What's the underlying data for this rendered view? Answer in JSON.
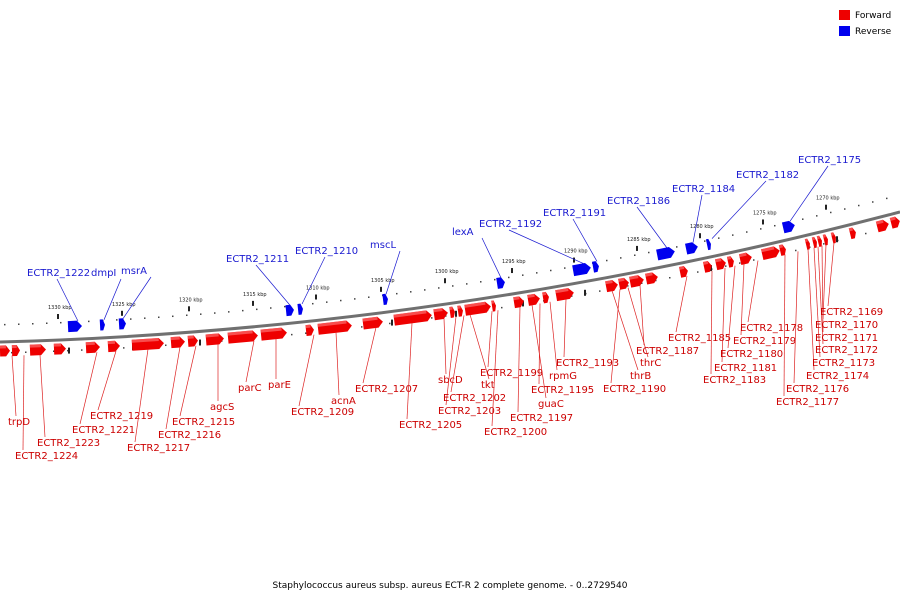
{
  "legend": {
    "forward": {
      "label": "Forward",
      "color": "#ee0000"
    },
    "reverse": {
      "label": "Reverse",
      "color": "#0000ee"
    }
  },
  "caption": "Staphylococcus aureus subsp. aureus ECT-R 2 complete genome. - 0..2729540",
  "ticks": [
    "1330 kbp",
    "1325 kbp",
    "1320 kbp",
    "1315 kbp",
    "1310 kbp",
    "1305 kbp",
    "1300 kbp",
    "1295 kbp",
    "1290 kbp",
    "1285 kbp",
    "1280 kbp",
    "1275 kbp",
    "1270 kbp"
  ],
  "reverse_labels": [
    "ECTR2_1222",
    "dmpI",
    "msrA",
    "ECTR2_1211",
    "ECTR2_1210",
    "mscL",
    "lexA",
    "ECTR2_1192",
    "ECTR2_1191",
    "ECTR2_1186",
    "ECTR2_1184",
    "ECTR2_1182",
    "ECTR2_1175"
  ],
  "forward_labels": [
    "trpD",
    "ECTR2_1224",
    "ECTR2_1223",
    "ECTR2_1221",
    "ECTR2_1219",
    "ECTR2_1217",
    "ECTR2_1216",
    "ECTR2_1215",
    "agcS",
    "parC",
    "parE",
    "ECTR2_1209",
    "acnA",
    "ECTR2_1207",
    "ECTR2_1205",
    "sbcD",
    "ECTR2_1203",
    "ECTR2_1202",
    "tkt",
    "ECTR2_1200",
    "ECTR2_1199",
    "ECTR2_1197",
    "guaC",
    "ECTR2_1195",
    "rpmG",
    "ECTR2_1193",
    "thrB",
    "ECTR2_1190",
    "thrC",
    "ECTR2_1187",
    "ECTR2_1185",
    "ECTR2_1183",
    "ECTR2_1181",
    "ECTR2_1180",
    "ECTR2_1179",
    "ECTR2_1178",
    "ECTR2_1177",
    "ECTR2_1176",
    "ECTR2_1174",
    "ECTR2_1173",
    "ECTR2_1172",
    "ECTR2_1171",
    "ECTR2_1170",
    "ECTR2_1169"
  ]
}
